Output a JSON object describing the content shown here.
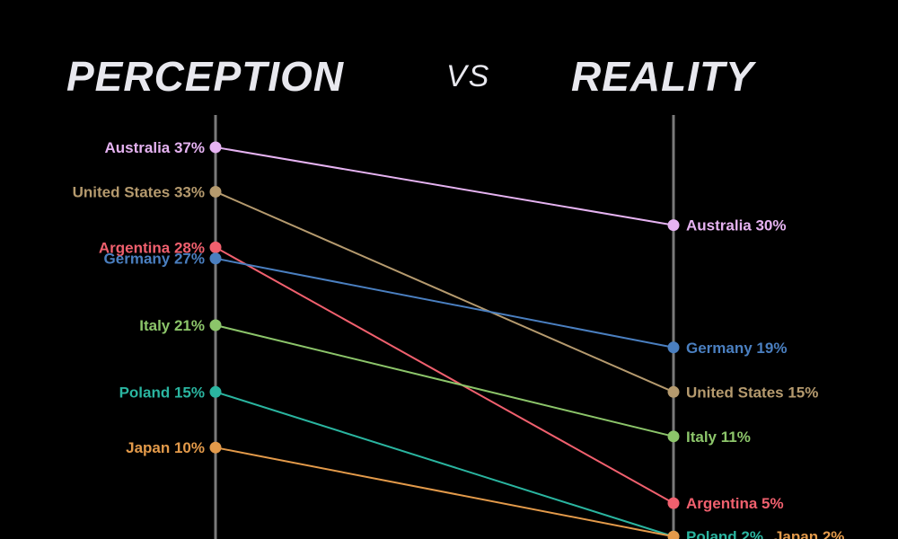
{
  "header": {
    "left_title": "PERCEPTION",
    "middle": "VS",
    "right_title": "REALITY"
  },
  "chart_data": {
    "type": "slope",
    "left_axis": "PERCEPTION",
    "right_axis": "REALITY",
    "unit": "%",
    "ylim": [
      0,
      40
    ],
    "grid": false,
    "series": [
      {
        "name": "Australia",
        "perception": 37,
        "reality": 30,
        "color": "#e6b3f2",
        "left_label": "Australia 37%",
        "right_label": "Australia 30%"
      },
      {
        "name": "United States",
        "perception": 33,
        "reality": 15,
        "color": "#b59a6e",
        "left_label": "United States 33%",
        "right_label": "United States 15%"
      },
      {
        "name": "Argentina",
        "perception": 28,
        "reality": 5,
        "color": "#f0606e",
        "left_label": "Argentina 28%",
        "right_label": "Argentina 5%"
      },
      {
        "name": "Germany",
        "perception": 27,
        "reality": 19,
        "color": "#4a7fc0",
        "left_label": "Germany 27%",
        "right_label": "Germany 19%"
      },
      {
        "name": "Italy",
        "perception": 21,
        "reality": 11,
        "color": "#8cc56a",
        "left_label": "Italy 21%",
        "right_label": "Italy 11%"
      },
      {
        "name": "Poland",
        "perception": 15,
        "reality": 2,
        "color": "#2ab5a0",
        "left_label": "Poland 15%",
        "right_label": "Poland 2%"
      },
      {
        "name": "Japan",
        "perception": 10,
        "reality": 2,
        "color": "#e39a4a",
        "left_label": "Japan 10%",
        "right_label": "Japan 2%"
      }
    ]
  }
}
